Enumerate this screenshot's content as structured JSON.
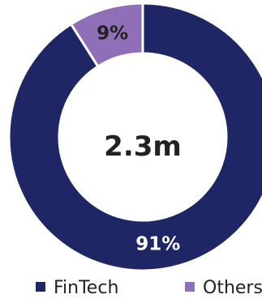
{
  "chart_data": {
    "type": "pie",
    "style": "donut",
    "center_text": "2.3m",
    "slices": [
      {
        "label": "FinTech",
        "value": 91,
        "display": "91%",
        "color": "#1f2666",
        "label_color": "#ffffff"
      },
      {
        "label": "Others",
        "value": 9,
        "display": "9%",
        "color": "#8f6fb7",
        "label_color": "#222222"
      }
    ],
    "legend": {
      "position": "bottom",
      "entries": [
        "FinTech",
        "Others"
      ]
    }
  }
}
